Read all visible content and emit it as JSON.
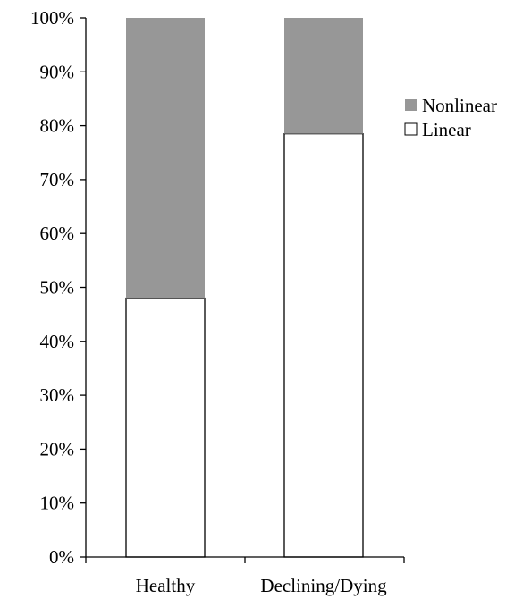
{
  "chart_data": {
    "type": "bar",
    "stacked": true,
    "categories": [
      "Healthy",
      "Declining/Dying"
    ],
    "series": [
      {
        "name": "Linear",
        "values": [
          48,
          78.5
        ]
      },
      {
        "name": "Nonlinear",
        "values": [
          52,
          21.5
        ]
      }
    ],
    "ylim": [
      0,
      100
    ],
    "yticks": [
      "0%",
      "10%",
      "20%",
      "30%",
      "40%",
      "50%",
      "60%",
      "70%",
      "80%",
      "90%",
      "100%"
    ],
    "legend": {
      "placement": "right",
      "entries": [
        "Nonlinear",
        "Linear"
      ]
    },
    "colors": {
      "Linear": "#ffffff",
      "Nonlinear": "#979797",
      "bar_outline": "#000000",
      "axis": "#000000"
    },
    "grid": false,
    "title": "",
    "xlabel": "",
    "ylabel": ""
  }
}
